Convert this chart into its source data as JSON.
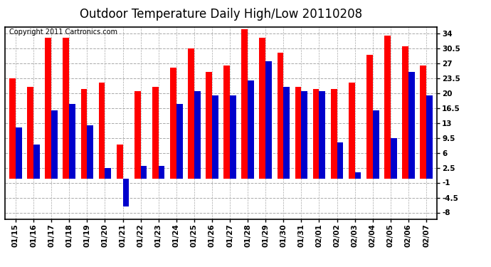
{
  "title": "Outdoor Temperature Daily High/Low 20110208",
  "copyright": "Copyright 2011 Cartronics.com",
  "dates": [
    "01/15",
    "01/16",
    "01/17",
    "01/18",
    "01/19",
    "01/20",
    "01/21",
    "01/22",
    "01/23",
    "01/24",
    "01/25",
    "01/26",
    "01/27",
    "01/28",
    "01/29",
    "01/30",
    "01/31",
    "02/01",
    "02/02",
    "02/03",
    "02/04",
    "02/05",
    "02/06",
    "02/07"
  ],
  "highs": [
    23.5,
    21.5,
    33.0,
    33.0,
    21.0,
    22.5,
    8.0,
    20.5,
    21.5,
    26.0,
    30.5,
    25.0,
    26.5,
    35.0,
    33.0,
    29.5,
    21.5,
    21.0,
    21.0,
    22.5,
    29.0,
    33.5,
    31.0,
    26.5
  ],
  "lows": [
    12.0,
    8.0,
    16.0,
    17.5,
    12.5,
    2.5,
    -6.5,
    3.0,
    3.0,
    17.5,
    20.5,
    19.5,
    19.5,
    23.0,
    27.5,
    21.5,
    20.5,
    20.5,
    8.5,
    1.5,
    16.0,
    9.5,
    25.0,
    19.5
  ],
  "high_color": "#ff0000",
  "low_color": "#0000cc",
  "bg_color": "#ffffff",
  "grid_color": "#aaaaaa",
  "yticks": [
    -8.0,
    -4.5,
    -1.0,
    2.5,
    6.0,
    9.5,
    13.0,
    16.5,
    20.0,
    23.5,
    27.0,
    30.5,
    34.0
  ],
  "ylim": [
    -9.5,
    35.5
  ],
  "title_fontsize": 12,
  "copyright_fontsize": 7,
  "tick_fontsize": 7.5,
  "bar_width": 0.35
}
